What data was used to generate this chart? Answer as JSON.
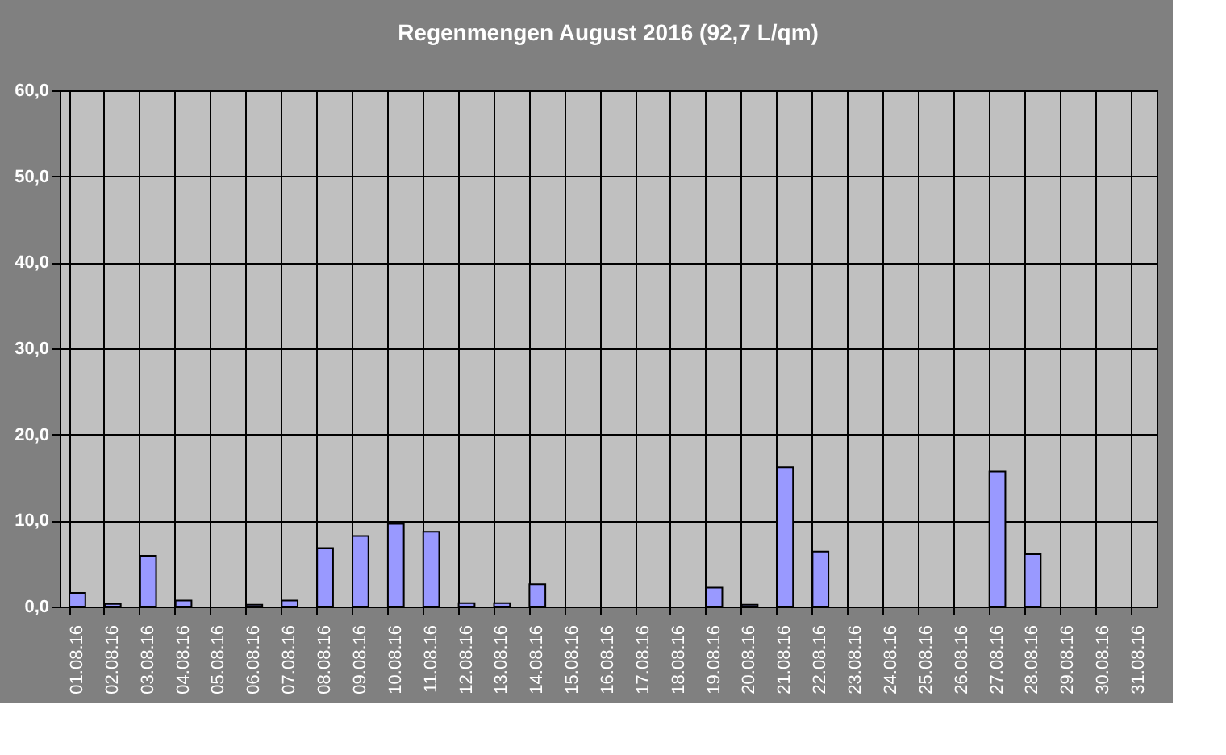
{
  "chart_data": {
    "type": "bar",
    "title": "Regenmengen August 2016 (92,7 L/qm)",
    "categories": [
      "01.08.16",
      "02.08.16",
      "03.08.16",
      "04.08.16",
      "05.08.16",
      "06.08.16",
      "07.08.16",
      "08.08.16",
      "09.08.16",
      "10.08.16",
      "11.08.16",
      "12.08.16",
      "13.08.16",
      "14.08.16",
      "15.08.16",
      "16.08.16",
      "17.08.16",
      "18.08.16",
      "19.08.16",
      "20.08.16",
      "21.08.16",
      "22.08.16",
      "23.08.16",
      "24.08.16",
      "25.08.16",
      "26.08.16",
      "27.08.16",
      "28.08.16",
      "29.08.16",
      "30.08.16",
      "31.08.16"
    ],
    "values": [
      1.6,
      0.3,
      5.9,
      0.7,
      null,
      0.2,
      0.7,
      6.8,
      8.2,
      9.6,
      8.7,
      0.4,
      0.4,
      2.6,
      null,
      null,
      null,
      null,
      2.2,
      0.2,
      16.2,
      6.4,
      null,
      null,
      null,
      null,
      15.7,
      6.1,
      null,
      null,
      null
    ],
    "color": "#9999ff",
    "ylim": [
      0,
      60
    ],
    "yticks": [
      {
        "value": 0,
        "label": "0,0"
      },
      {
        "value": 10,
        "label": "10,0"
      },
      {
        "value": 20,
        "label": "20,0"
      },
      {
        "value": 30,
        "label": "30,0"
      },
      {
        "value": 40,
        "label": "40,0"
      },
      {
        "value": 50,
        "label": "50,0"
      },
      {
        "value": 60,
        "label": "60,0"
      }
    ],
    "grid": true
  }
}
